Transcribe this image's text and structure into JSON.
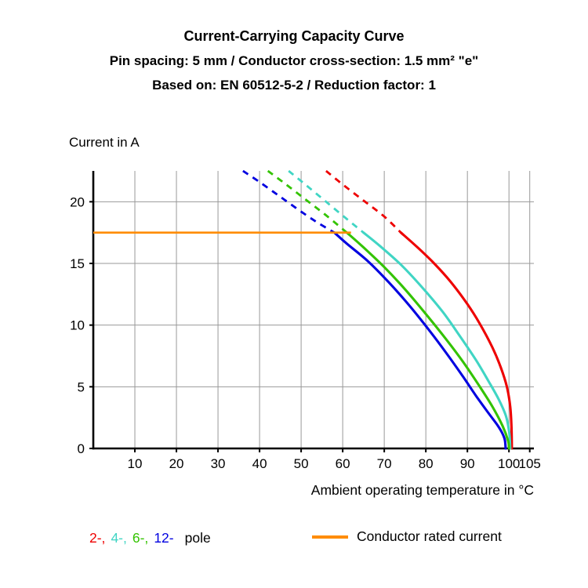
{
  "header": {
    "title": "Current-Carrying Capacity Curve",
    "subtitle1": "Pin spacing: 5 mm / Conductor cross-section: 1.5 mm² \"e\"",
    "subtitle2": "Based on: EN 60512-5-2 / Reduction factor: 1"
  },
  "legend": {
    "suffix": "pole",
    "pole_text_color": "#000000"
  },
  "chart_data": {
    "type": "line",
    "title": "Current-Carrying Capacity Curve",
    "grid": true,
    "dashed_above_rated_current": true,
    "x_axis": {
      "label": "Ambient operating temperature in °C",
      "ticks": [
        10,
        20,
        30,
        40,
        50,
        60,
        70,
        80,
        90,
        100,
        105
      ],
      "min": 0,
      "max": 106
    },
    "y_axis": {
      "label": "Current in A",
      "ticks": [
        0,
        5,
        10,
        15,
        20
      ],
      "min": 0,
      "max": 22.5
    },
    "rated_current": {
      "label": "Conductor rated current",
      "value": 17.5,
      "x_start": 0,
      "x_end": 62,
      "color": "#ff8c00"
    },
    "series": [
      {
        "name": "2-pole",
        "short_label": "2-,",
        "color": "#ee0000",
        "points": [
          [
            56,
            22.5
          ],
          [
            60,
            21.4
          ],
          [
            65,
            20.1
          ],
          [
            70,
            18.8
          ],
          [
            74,
            17.5
          ],
          [
            78,
            16.3
          ],
          [
            82,
            15.0
          ],
          [
            86,
            13.5
          ],
          [
            90,
            11.7
          ],
          [
            93,
            10.1
          ],
          [
            96,
            8.2
          ],
          [
            98,
            6.6
          ],
          [
            99.5,
            5.0
          ],
          [
            100.3,
            3.4
          ],
          [
            100.6,
            1.8
          ],
          [
            100.7,
            0
          ]
        ]
      },
      {
        "name": "4-pole",
        "short_label": "4-,",
        "color": "#40d5c4",
        "points": [
          [
            47,
            22.5
          ],
          [
            51,
            21.4
          ],
          [
            56,
            20.0
          ],
          [
            61,
            18.6
          ],
          [
            65,
            17.5
          ],
          [
            69,
            16.4
          ],
          [
            74,
            14.9
          ],
          [
            79,
            13.1
          ],
          [
            84,
            11.1
          ],
          [
            88,
            9.2
          ],
          [
            92,
            7.2
          ],
          [
            95,
            5.5
          ],
          [
            97.5,
            4.0
          ],
          [
            99.3,
            2.6
          ],
          [
            100.1,
            1.2
          ],
          [
            100.3,
            0
          ]
        ]
      },
      {
        "name": "6-pole",
        "short_label": "6-,",
        "color": "#33c300",
        "points": [
          [
            42,
            22.5
          ],
          [
            46,
            21.5
          ],
          [
            51,
            20.2
          ],
          [
            56,
            18.9
          ],
          [
            61,
            17.5
          ],
          [
            65,
            16.3
          ],
          [
            70,
            14.7
          ],
          [
            75,
            12.9
          ],
          [
            80,
            10.9
          ],
          [
            85,
            8.8
          ],
          [
            89,
            7.0
          ],
          [
            93,
            5.0
          ],
          [
            96,
            3.4
          ],
          [
            98.5,
            1.8
          ],
          [
            99.8,
            0.6
          ],
          [
            100,
            0
          ]
        ]
      },
      {
        "name": "12-pole",
        "short_label": "12-",
        "color": "#0000e0",
        "points": [
          [
            36,
            22.5
          ],
          [
            40,
            21.6
          ],
          [
            45,
            20.4
          ],
          [
            50,
            19.2
          ],
          [
            54,
            18.3
          ],
          [
            58,
            17.5
          ],
          [
            61,
            16.6
          ],
          [
            66,
            15.2
          ],
          [
            71,
            13.5
          ],
          [
            76,
            11.6
          ],
          [
            81,
            9.5
          ],
          [
            85,
            7.7
          ],
          [
            89,
            5.8
          ],
          [
            92,
            4.3
          ],
          [
            95,
            2.9
          ],
          [
            97,
            2.0
          ],
          [
            98.3,
            1.3
          ],
          [
            99,
            0.7
          ],
          [
            99.2,
            0
          ]
        ]
      }
    ],
    "style": {
      "grid_color": "#999999",
      "axis_color": "#000000"
    }
  }
}
